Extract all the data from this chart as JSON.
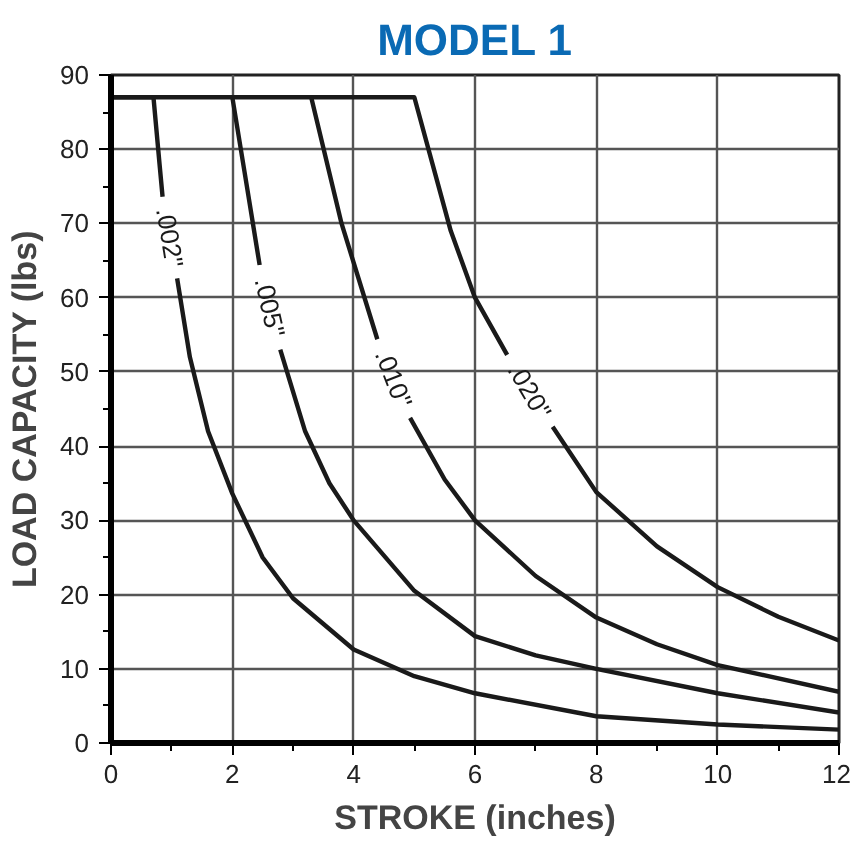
{
  "chart_data": {
    "type": "line",
    "title": "MODEL 1",
    "xlabel": "STROKE (inches)",
    "ylabel": "LOAD CAPACITY (lbs)",
    "xlim": [
      0,
      12
    ],
    "ylim": [
      0,
      90
    ],
    "xticks": [
      0,
      2,
      4,
      6,
      8,
      10,
      12
    ],
    "yticks": [
      0,
      10,
      20,
      30,
      40,
      50,
      60,
      70,
      80,
      90
    ],
    "grid": true,
    "marker": "none",
    "line_style": "solid",
    "series": [
      {
        "name": ".002\"",
        "color": "#1a1a1a",
        "x": [
          0,
          0.7,
          0.8,
          0.85,
          0.97,
          1.09,
          1.3,
          1.6,
          2,
          2.5,
          3,
          4,
          5,
          6,
          8,
          10,
          12
        ],
        "values": [
          87,
          87,
          78,
          73.6,
          null,
          62.6,
          52,
          42,
          33.6,
          25,
          19.5,
          12.6,
          9,
          6.7,
          3.6,
          2.5,
          1.8
        ]
      },
      {
        "name": ".005\"",
        "color": "#1a1a1a",
        "x": [
          2.0,
          2.2,
          2.45,
          2.62,
          2.79,
          3.2,
          3.6,
          4,
          5,
          6,
          7,
          8,
          10,
          12
        ],
        "values": [
          87,
          77,
          64.4,
          null,
          53,
          42,
          35,
          30,
          20.5,
          14.4,
          11.8,
          10,
          6.7,
          4.1
        ]
      },
      {
        "name": ".010\"",
        "color": "#1a1a1a",
        "x": [
          3.3,
          3.8,
          4.39,
          4.66,
          4.93,
          5.5,
          6,
          7,
          8,
          9,
          10,
          12
        ],
        "values": [
          87,
          70,
          54.4,
          null,
          43.8,
          35.5,
          30,
          22.5,
          16.9,
          13.3,
          10.5,
          6.9
        ]
      },
      {
        "name": ".020\"",
        "color": "#1a1a1a",
        "x": [
          0,
          5.0,
          5.3,
          5.6,
          6.0,
          6.53,
          6.9,
          7.28,
          8,
          9,
          10,
          11,
          12
        ],
        "values": [
          87,
          87,
          78,
          69,
          60,
          52.3,
          null,
          42.6,
          33.8,
          26.5,
          21,
          17,
          13.8
        ]
      }
    ]
  }
}
